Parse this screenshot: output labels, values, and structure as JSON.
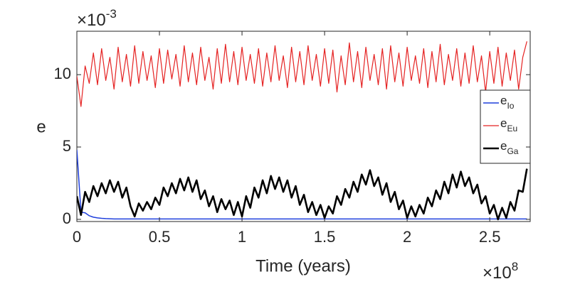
{
  "chart_data": {
    "type": "line",
    "x_label": "Time (years)",
    "y_label": "e",
    "x_multiplier": {
      "base": "×10",
      "exponent": "8"
    },
    "y_multiplier": {
      "base": "×10",
      "exponent": "-3"
    },
    "xlim": [
      0,
      2.745
    ],
    "ylim": [
      -0.15,
      13
    ],
    "xticks": [
      0,
      0.5,
      1,
      1.5,
      2,
      2.5
    ],
    "yticks": [
      0,
      5,
      10
    ],
    "grid": false,
    "legend": "right",
    "x": [
      0,
      0.025,
      0.05,
      0.075,
      0.1,
      0.125,
      0.15,
      0.175,
      0.2,
      0.225,
      0.25,
      0.275,
      0.3,
      0.325,
      0.35,
      0.375,
      0.4,
      0.425,
      0.45,
      0.475,
      0.5,
      0.525,
      0.55,
      0.575,
      0.6,
      0.625,
      0.65,
      0.675,
      0.7,
      0.725,
      0.75,
      0.775,
      0.8,
      0.825,
      0.85,
      0.875,
      0.9,
      0.925,
      0.95,
      0.975,
      1,
      1.025,
      1.05,
      1.075,
      1.1,
      1.125,
      1.15,
      1.175,
      1.2,
      1.225,
      1.25,
      1.275,
      1.3,
      1.325,
      1.35,
      1.375,
      1.4,
      1.425,
      1.45,
      1.475,
      1.5,
      1.525,
      1.55,
      1.575,
      1.6,
      1.625,
      1.65,
      1.675,
      1.7,
      1.725,
      1.75,
      1.775,
      1.8,
      1.825,
      1.85,
      1.875,
      1.9,
      1.925,
      1.95,
      1.975,
      2,
      2.025,
      2.05,
      2.075,
      2.1,
      2.125,
      2.15,
      2.175,
      2.2,
      2.225,
      2.25,
      2.275,
      2.3,
      2.325,
      2.35,
      2.375,
      2.4,
      2.425,
      2.45,
      2.475,
      2.5,
      2.525,
      2.55,
      2.575,
      2.6,
      2.625,
      2.65,
      2.675,
      2.7,
      2.725
    ],
    "series": [
      {
        "name": "e",
        "subscript": "Io",
        "color": "#1f3fdc",
        "width": 1.5,
        "values": [
          4.8,
          0.5,
          0.45,
          0.25,
          0.15,
          0.1,
          0.07,
          0.05,
          0.04,
          0.03,
          0.03,
          0.03,
          0.03,
          0.03,
          0.03,
          0.03,
          0.03,
          0.03,
          0.03,
          0.03,
          0.03,
          0.03,
          0.03,
          0.03,
          0.03,
          0.03,
          0.03,
          0.03,
          0.03,
          0.03,
          0.03,
          0.03,
          0.03,
          0.03,
          0.03,
          0.03,
          0.03,
          0.03,
          0.03,
          0.03,
          0.03,
          0.03,
          0.03,
          0.03,
          0.03,
          0.03,
          0.03,
          0.03,
          0.03,
          0.03,
          0.03,
          0.03,
          0.03,
          0.03,
          0.03,
          0.03,
          0.03,
          0.03,
          0.03,
          0.03,
          0.03,
          0.03,
          0.03,
          0.03,
          0.03,
          0.03,
          0.03,
          0.03,
          0.03,
          0.03,
          0.03,
          0.03,
          0.03,
          0.03,
          0.03,
          0.03,
          0.03,
          0.03,
          0.03,
          0.03,
          0.03,
          0.03,
          0.03,
          0.03,
          0.03,
          0.03,
          0.03,
          0.03,
          0.03,
          0.03,
          0.03,
          0.03,
          0.03,
          0.03,
          0.03,
          0.03,
          0.03,
          0.03,
          0.03,
          0.03,
          0.03,
          0.03,
          0.03,
          0.03,
          0.03,
          0.03,
          0.03,
          0.03,
          0.03,
          0.03
        ]
      },
      {
        "name": "e",
        "subscript": "Eu",
        "color": "#e52222",
        "width": 1.2,
        "values": [
          9.9,
          7.8,
          10.6,
          9.4,
          11.5,
          9.3,
          11.8,
          9.6,
          11.2,
          9.0,
          11.9,
          9.5,
          11.4,
          9.2,
          12.0,
          9.4,
          11.6,
          9.6,
          11.3,
          9.1,
          11.8,
          9.4,
          11.7,
          9.7,
          11.4,
          9.2,
          12.0,
          9.5,
          11.5,
          9.3,
          11.9,
          9.6,
          11.2,
          9.0,
          11.8,
          9.4,
          12.1,
          9.5,
          11.6,
          9.3,
          11.9,
          9.6,
          11.4,
          9.4,
          11.8,
          9.2,
          11.5,
          9.5,
          12.0,
          9.6,
          11.3,
          9.1,
          11.9,
          9.5,
          11.6,
          9.3,
          12.0,
          9.6,
          11.4,
          9.2,
          11.8,
          9.4,
          11.7,
          8.8,
          11.3,
          9.3,
          12.2,
          9.5,
          11.6,
          9.1,
          11.9,
          9.6,
          11.4,
          9.3,
          11.8,
          9.0,
          12.0,
          9.5,
          11.5,
          9.2,
          11.9,
          9.6,
          11.3,
          9.4,
          11.8,
          9.1,
          11.6,
          9.5,
          12.1,
          9.3,
          11.4,
          9.6,
          11.8,
          9.2,
          11.5,
          9.4,
          12.0,
          9.5,
          11.3,
          8.8,
          11.6,
          9.4,
          11.9,
          9.2,
          11.5,
          9.6,
          11.7,
          9.0,
          11.2,
          12.3
        ]
      },
      {
        "name": "e",
        "subscript": "Ga",
        "color": "#000000",
        "width": 2.6,
        "values": [
          1.6,
          0.3,
          1.9,
          1.2,
          2.3,
          1.6,
          2.5,
          1.8,
          2.7,
          1.9,
          2.6,
          1.5,
          2.2,
          0.9,
          0.2,
          1.1,
          0.6,
          1.2,
          0.7,
          1.5,
          1.0,
          2.2,
          1.6,
          2.5,
          1.8,
          2.8,
          2.0,
          2.9,
          1.9,
          2.7,
          1.4,
          2.0,
          0.9,
          1.6,
          0.5,
          1.4,
          0.7,
          1.3,
          0.3,
          1.2,
          0.2,
          1.6,
          0.8,
          2.2,
          1.5,
          2.7,
          1.8,
          3.0,
          2.1,
          2.9,
          1.9,
          2.7,
          1.5,
          2.3,
          1.0,
          1.7,
          0.5,
          1.2,
          0.3,
          1.0,
          0.1,
          0.9,
          0.4,
          1.6,
          1.0,
          2.1,
          1.5,
          2.6,
          1.9,
          3.1,
          2.4,
          3.4,
          2.3,
          2.9,
          1.7,
          2.5,
          1.2,
          1.9,
          0.7,
          1.3,
          0.1,
          0.9,
          0.2,
          1.0,
          0.4,
          1.5,
          0.9,
          2.0,
          1.4,
          2.6,
          1.8,
          3.1,
          2.2,
          3.3,
          2.3,
          2.9,
          1.8,
          2.4,
          1.1,
          1.6,
          0.4,
          1.0,
          0.0,
          0.8,
          0.1,
          1.2,
          0.6,
          2.0,
          1.9,
          3.5
        ]
      }
    ]
  }
}
